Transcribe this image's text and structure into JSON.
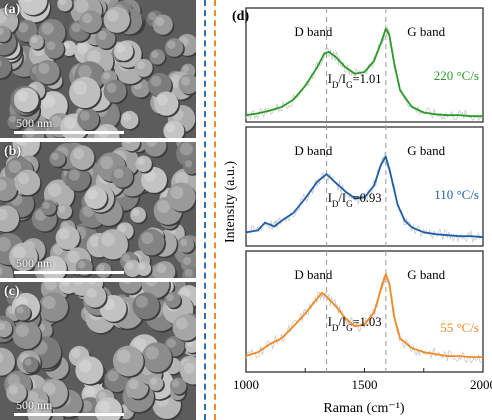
{
  "sem_panels": [
    {
      "label": "(a)",
      "scale": "500 nm"
    },
    {
      "label": "(b)",
      "scale": "500 nm"
    },
    {
      "label": "(c)",
      "scale": "500 nm"
    }
  ],
  "dividers": {
    "left_color": "#2f6fb5",
    "right_color": "#f08a24"
  },
  "chart_data": {
    "type": "line",
    "panel_label": "(d)",
    "xlabel": "Raman (cm⁻¹)",
    "ylabel": "Intensity (a.u.)",
    "xlim": [
      1000,
      2000
    ],
    "xticks": [
      "1000",
      "1500",
      "2000"
    ],
    "reference_lines_x": [
      1340,
      1590
    ],
    "series": [
      {
        "name": "220 °C/s",
        "color": "#2a9a2a",
        "band_labels": {
          "d": "D band",
          "g": "G band"
        },
        "ratio_label": "ID/IG=1.01",
        "x": [
          1000,
          1050,
          1100,
          1150,
          1200,
          1250,
          1300,
          1330,
          1350,
          1380,
          1420,
          1460,
          1500,
          1540,
          1570,
          1590,
          1605,
          1625,
          1650,
          1700,
          1750,
          1800,
          1850,
          1900,
          1950,
          2000
        ],
        "y": [
          0.03,
          0.05,
          0.08,
          0.12,
          0.2,
          0.35,
          0.55,
          0.7,
          0.72,
          0.66,
          0.55,
          0.48,
          0.5,
          0.62,
          0.82,
          0.97,
          0.9,
          0.6,
          0.3,
          0.12,
          0.06,
          0.04,
          0.03,
          0.03,
          0.02,
          0.02
        ]
      },
      {
        "name": "110 °C/s",
        "color": "#1f5fa8",
        "band_labels": {
          "d": "D band",
          "g": "G band"
        },
        "ratio_label": "ID/IG=0.93",
        "x": [
          1000,
          1050,
          1080,
          1120,
          1150,
          1200,
          1250,
          1300,
          1340,
          1370,
          1420,
          1460,
          1500,
          1540,
          1570,
          1590,
          1610,
          1640,
          1670,
          1700,
          1750,
          1800,
          1850,
          1900,
          1950,
          2000
        ],
        "y": [
          0.1,
          0.12,
          0.2,
          0.16,
          0.22,
          0.3,
          0.45,
          0.62,
          0.7,
          0.63,
          0.52,
          0.45,
          0.46,
          0.58,
          0.8,
          0.88,
          0.7,
          0.38,
          0.22,
          0.15,
          0.1,
          0.08,
          0.07,
          0.06,
          0.06,
          0.05
        ]
      },
      {
        "name": "55 °C/s",
        "color": "#f08a24",
        "band_labels": {
          "d": "D band",
          "g": "G band"
        },
        "ratio_label": "ID/IG=1.03",
        "x": [
          1000,
          1050,
          1100,
          1150,
          1200,
          1250,
          1300,
          1320,
          1340,
          1380,
          1420,
          1460,
          1500,
          1540,
          1570,
          1590,
          1605,
          1625,
          1650,
          1700,
          1750,
          1800,
          1850,
          1900,
          1950,
          2000
        ],
        "y": [
          0.12,
          0.16,
          0.24,
          0.3,
          0.42,
          0.55,
          0.7,
          0.76,
          0.72,
          0.62,
          0.5,
          0.42,
          0.44,
          0.56,
          0.8,
          0.95,
          0.85,
          0.52,
          0.3,
          0.2,
          0.16,
          0.14,
          0.12,
          0.12,
          0.11,
          0.11
        ]
      }
    ]
  }
}
